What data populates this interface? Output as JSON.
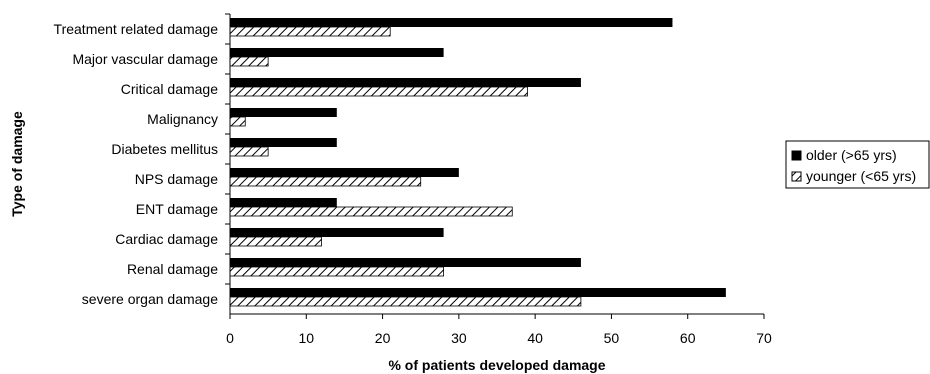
{
  "chart_data": {
    "type": "bar",
    "orientation": "horizontal",
    "xlabel": "% of patients developed damage",
    "ylabel": "Type of damage",
    "xlim": [
      0,
      70
    ],
    "xticks": [
      0,
      10,
      20,
      30,
      40,
      50,
      60,
      70
    ],
    "grid": false,
    "legend_position": "right",
    "categories": [
      "Treatment related damage",
      "Major vascular damage",
      "Critical damage",
      "Malignancy",
      "Diabetes mellitus",
      "NPS damage",
      "ENT damage",
      "Cardiac damage",
      "Renal damage",
      "severe organ damage"
    ],
    "series": [
      {
        "name": "older (>65 yrs)",
        "fill": "solid",
        "color": "#000000",
        "values": [
          58,
          28,
          46,
          14,
          14,
          30,
          14,
          28,
          46,
          65
        ]
      },
      {
        "name": "younger (<65 yrs)",
        "fill": "hatched",
        "color": "#000000",
        "values": [
          21,
          5,
          39,
          2,
          5,
          25,
          37,
          12,
          28,
          46
        ]
      }
    ]
  }
}
